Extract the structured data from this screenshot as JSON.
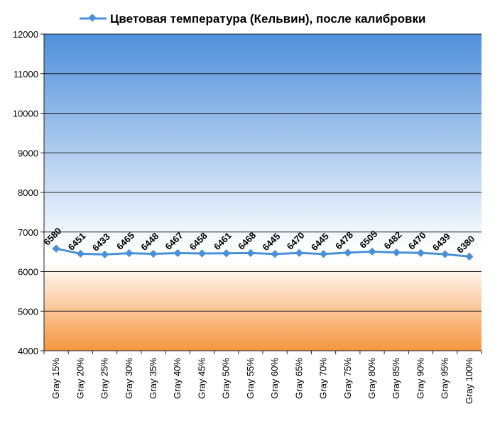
{
  "chart_data": {
    "type": "line",
    "legend": "Цветовая температура (Кельвин), после калибровки",
    "legend_position": "top",
    "categories": [
      "Gray 15%",
      "Gray 20%",
      "Gray 25%",
      "Gray 30%",
      "Gray 35%",
      "Gray 40%",
      "Gray 45%",
      "Gray 50%",
      "Gray 55%",
      "Gray 60%",
      "Gray 65%",
      "Gray 70%",
      "Gray 75%",
      "Gray 80%",
      "Gray 85%",
      "Gray 90%",
      "Gray 95%",
      "Gray 100%"
    ],
    "series": [
      {
        "name": "Цветовая температура (Кельвин), после калибровки",
        "values": [
          6580,
          6451,
          6433,
          6465,
          6448,
          6467,
          6458,
          6461,
          6468,
          6445,
          6470,
          6445,
          6478,
          6505,
          6482,
          6470,
          6439,
          6380
        ],
        "color": "#4a90d9"
      }
    ],
    "ylim": [
      4000,
      12000
    ],
    "yticks": [
      4000,
      5000,
      6000,
      7000,
      8000,
      9000,
      10000,
      11000,
      12000
    ],
    "grid": "horizontal",
    "background": {
      "top_color": "#4f8fdb",
      "middle_color": "#ffffff",
      "bottom_color": "#f7953f"
    }
  }
}
